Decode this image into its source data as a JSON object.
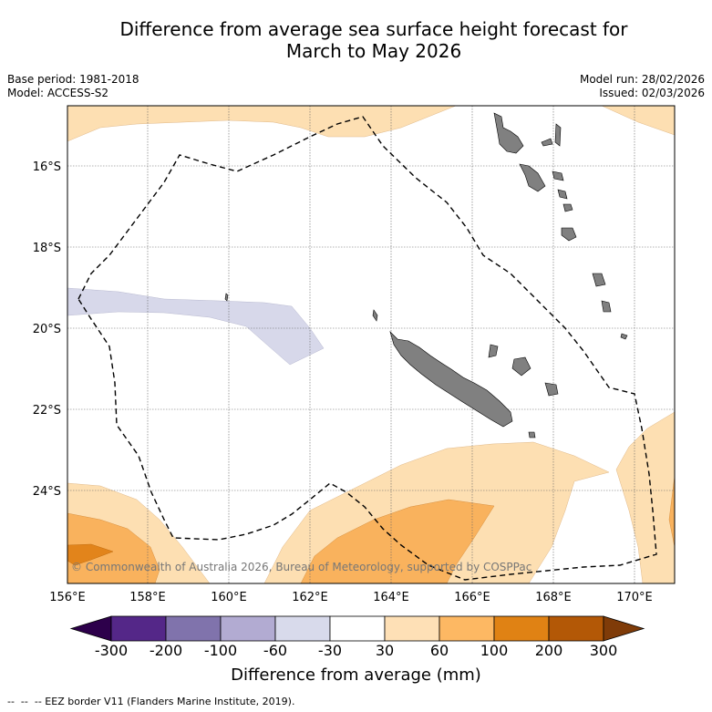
{
  "header": {
    "title_line1": "Difference from average sea surface height forecast for",
    "title_line2": "March to May 2026",
    "base_period": "Base period: 1981-2018",
    "model": "Model: ACCESS-S2",
    "model_run": "Model run: 28/02/2026",
    "issued": "Issued: 02/03/2026"
  },
  "map": {
    "lat_labels": [
      "16°S",
      "18°S",
      "20°S",
      "22°S",
      "24°S"
    ],
    "lon_labels": [
      "156°E",
      "158°E",
      "160°E",
      "162°E",
      "164°E",
      "166°E",
      "168°E",
      "170°E"
    ],
    "attribution": "© Commonwealth of Australia 2026, Bureau of Meteorology, supported by COSPPac",
    "colors": {
      "light_orange": "#fddfb2",
      "mid_orange": "#f9b25d",
      "dark_orange": "#e2841b",
      "light_purple": "#d7d8ea",
      "land": "#808080",
      "eez": "#000000"
    }
  },
  "colorbar": {
    "labels": [
      "-300",
      "-200",
      "-100",
      "-60",
      "-30",
      "30",
      "60",
      "100",
      "200",
      "300"
    ],
    "colors": [
      "#2d004b",
      "#542788",
      "#8073ac",
      "#b2abd2",
      "#d8daeb",
      "#ffffff",
      "#fee0b6",
      "#fdb863",
      "#e08214",
      "#b35806",
      "#7f3b08"
    ],
    "title": "Difference from average (mm)"
  },
  "footnote": "-- EEZ border V11 (Flanders Marine Institute, 2019)."
}
